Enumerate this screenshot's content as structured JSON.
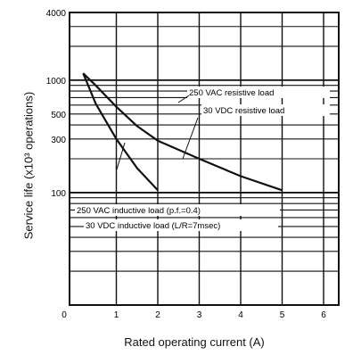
{
  "chart_data": {
    "type": "line",
    "title": "",
    "xlabel": "Rated operating current (A)",
    "ylabel": "Service life (x10³ operations)",
    "x_ticks": [
      0,
      1,
      2,
      3,
      4,
      5,
      6
    ],
    "x_tick_labels": [
      "0",
      "1",
      "2",
      "3",
      "4",
      "5",
      "6"
    ],
    "xlim": [
      0,
      6.5
    ],
    "y_scale": "log",
    "ylim": [
      10,
      4000
    ],
    "y_ticks": [
      100,
      300,
      500,
      1000,
      4000
    ],
    "y_tick_labels": [
      "100",
      "300",
      "500",
      "1000",
      "4000"
    ],
    "grid": true,
    "series": [
      {
        "name": "250 VAC resistive load / 30 VDC resistive load",
        "x": [
          0.2,
          0.5,
          1.0,
          1.5,
          2.0,
          3.0,
          4.0,
          5.0
        ],
        "y": [
          1150,
          900,
          580,
          390,
          290,
          200,
          140,
          105
        ]
      },
      {
        "name": "250 VAC inductive load (p.f.=0.4) / 30 VDC inductive load (L/R=7msec)",
        "x": [
          0.2,
          0.5,
          1.0,
          1.5,
          2.0
        ],
        "y": [
          1150,
          620,
          300,
          165,
          105
        ]
      }
    ],
    "annotations": [
      "250 VAC resistive load",
      "30 VDC resistive load",
      "250 VAC inductive load (p.f.=0.4)",
      "30 VDC inductive load (L/R=7msec)"
    ],
    "colors": {
      "line": "#111111",
      "grid": "#111111"
    }
  }
}
